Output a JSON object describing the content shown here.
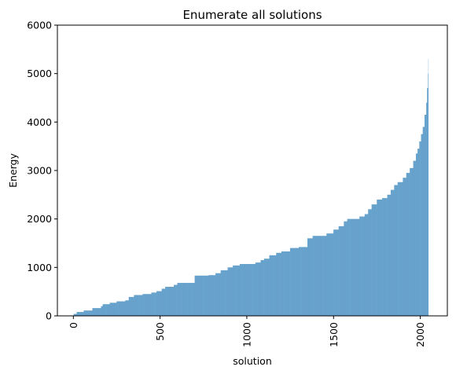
{
  "chart_data": {
    "type": "bar",
    "title": "Enumerate all solutions",
    "xlabel": "solution",
    "ylabel": "Energy",
    "xlim": [
      -92,
      2156
    ],
    "ylim": [
      0,
      6000
    ],
    "x_ticks": [
      0,
      500,
      1000,
      1500,
      2000
    ],
    "x_tick_labels": [
      "0",
      "500",
      "1000",
      "1500",
      "2000"
    ],
    "x_tick_rotation": 90,
    "y_ticks": [
      0,
      1000,
      2000,
      3000,
      4000,
      5000,
      6000
    ],
    "y_tick_labels": [
      "0",
      "1000",
      "2000",
      "3000",
      "4000",
      "5000",
      "6000"
    ],
    "grid": false,
    "legend": "none",
    "bar_color": "#1f77b4",
    "n_solutions": 2048,
    "series": [
      {
        "x_range": [
          0,
          2047
        ],
        "steps": [
          [
            0,
            0
          ],
          [
            2,
            40
          ],
          [
            20,
            80
          ],
          [
            60,
            110
          ],
          [
            110,
            160
          ],
          [
            160,
            200
          ],
          [
            170,
            240
          ],
          [
            210,
            270
          ],
          [
            250,
            300
          ],
          [
            300,
            320
          ],
          [
            320,
            390
          ],
          [
            350,
            430
          ],
          [
            400,
            450
          ],
          [
            450,
            480
          ],
          [
            480,
            510
          ],
          [
            510,
            560
          ],
          [
            530,
            600
          ],
          [
            580,
            640
          ],
          [
            600,
            680
          ],
          [
            700,
            830
          ],
          [
            780,
            840
          ],
          [
            820,
            880
          ],
          [
            850,
            940
          ],
          [
            890,
            1000
          ],
          [
            920,
            1040
          ],
          [
            960,
            1070
          ],
          [
            1050,
            1100
          ],
          [
            1080,
            1150
          ],
          [
            1100,
            1180
          ],
          [
            1130,
            1250
          ],
          [
            1170,
            1300
          ],
          [
            1200,
            1330
          ],
          [
            1250,
            1400
          ],
          [
            1300,
            1420
          ],
          [
            1350,
            1600
          ],
          [
            1380,
            1650
          ],
          [
            1460,
            1700
          ],
          [
            1500,
            1780
          ],
          [
            1530,
            1850
          ],
          [
            1560,
            1950
          ],
          [
            1580,
            2000
          ],
          [
            1650,
            2050
          ],
          [
            1680,
            2100
          ],
          [
            1700,
            2200
          ],
          [
            1720,
            2300
          ],
          [
            1750,
            2400
          ],
          [
            1780,
            2430
          ],
          [
            1810,
            2500
          ],
          [
            1830,
            2600
          ],
          [
            1850,
            2700
          ],
          [
            1870,
            2760
          ],
          [
            1900,
            2850
          ],
          [
            1920,
            2950
          ],
          [
            1940,
            3050
          ],
          [
            1960,
            3200
          ],
          [
            1975,
            3350
          ],
          [
            1985,
            3450
          ],
          [
            1995,
            3600
          ],
          [
            2005,
            3750
          ],
          [
            2015,
            3900
          ],
          [
            2025,
            4150
          ],
          [
            2035,
            4400
          ],
          [
            2040,
            4700
          ],
          [
            2045,
            5000
          ],
          [
            2047,
            5300
          ]
        ]
      }
    ]
  }
}
